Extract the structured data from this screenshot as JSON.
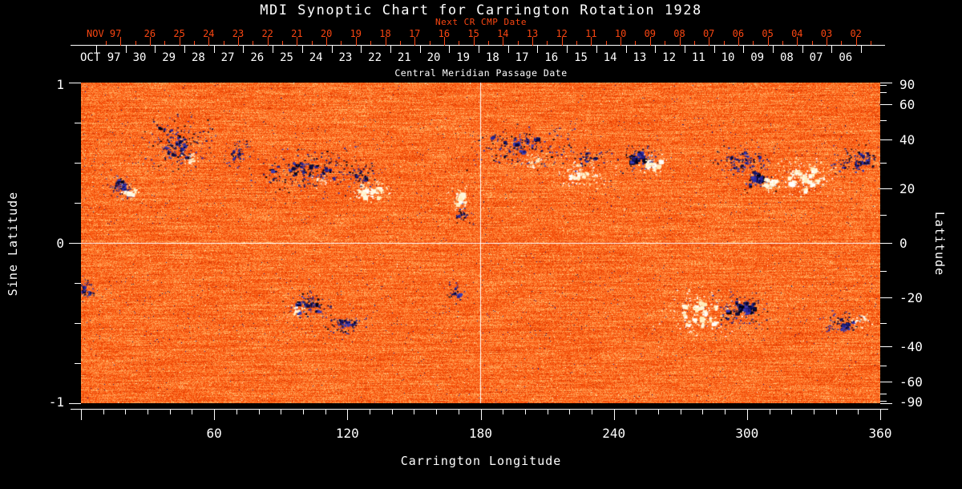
{
  "chart_data": {
    "type": "heatmap",
    "title": "MDI Synoptic Chart for Carrington Rotation 1928",
    "xlabel": "Carrington Longitude",
    "ylabel_left": "Sine Latitude",
    "ylabel_right": "Latitude",
    "xlim": [
      0,
      360
    ],
    "ylim_sine": [
      -1,
      1
    ],
    "x_major_tick_values": [
      60,
      120,
      180,
      240,
      300,
      360
    ],
    "x_tick_labels": [
      "60",
      "120",
      "180",
      "240",
      "300",
      "360"
    ],
    "x_minor_step_deg": 10,
    "left_tick_values": [
      1,
      0.75,
      0.5,
      0.25,
      0,
      -0.25,
      -0.5,
      -0.75,
      -1
    ],
    "left_labeled_values": [
      1,
      0,
      -1
    ],
    "left_tick_labels": [
      "1",
      "0",
      "-1"
    ],
    "right_tick_step_deg": 10,
    "right_labeled_values": [
      90,
      60,
      40,
      20,
      0,
      -20,
      -40,
      -60,
      -90
    ],
    "right_tick_labels": [
      "90",
      "60",
      "40",
      "20",
      "0",
      "-20",
      "-40",
      "-60",
      "-90"
    ],
    "grid_crosshair": {
      "longitude": 180,
      "sine_latitude": 0
    },
    "top_axis": {
      "label": "Central Meridian Passage Date",
      "month_label": "OCT 97",
      "dates": [
        "30",
        "29",
        "28",
        "27",
        "26",
        "25",
        "24",
        "23",
        "22",
        "21",
        "20",
        "19",
        "18",
        "17",
        "16",
        "15",
        "14",
        "13",
        "12",
        "11",
        "10",
        "09",
        "08",
        "07",
        "06"
      ],
      "next_cr": {
        "label": "Next CR CMP Date",
        "month_label": "NOV 97",
        "dates": [
          "26",
          "25",
          "24",
          "23",
          "22",
          "21",
          "20",
          "19",
          "18",
          "17",
          "16",
          "15",
          "14",
          "13",
          "12",
          "11",
          "10",
          "09",
          "08",
          "07",
          "06",
          "05",
          "04",
          "03",
          "02"
        ]
      }
    },
    "colors": {
      "background": "#000000",
      "text": "#ffffff",
      "accent_red": "#fa4612",
      "crosshair": "#ffffff",
      "quiet_sun_palette": [
        "#7d1600",
        "#c62d00",
        "#ef4505",
        "#fb5c12",
        "#ff7b2e",
        "#ffa255",
        "#ffd98f"
      ],
      "negative_polarity": [
        "#000010",
        "#0a0a3c",
        "#16166a",
        "#26269a",
        "#3b3bb4"
      ],
      "positive_polarity": [
        "#ffffff",
        "#fff7da",
        "#ffeebb"
      ]
    },
    "active_regions": [
      {
        "lon": 17.5,
        "slat": 0.36,
        "pol": "neg",
        "sl": 4,
        "ss": 0.045,
        "blobs": 10,
        "specks": 45,
        "size": 3
      },
      {
        "lon": 22,
        "slat": 0.32,
        "pol": "pos",
        "sl": 3,
        "ss": 0.03,
        "blobs": 7,
        "specks": 20,
        "size": 3
      },
      {
        "lon": 44,
        "slat": 0.63,
        "pol": "neg",
        "sl": 11,
        "ss": 0.1,
        "blobs": 26,
        "specks": 130,
        "size": 3
      },
      {
        "lon": 49,
        "slat": 0.53,
        "pol": "pos",
        "sl": 3,
        "ss": 0.03,
        "blobs": 5,
        "specks": 15,
        "size": 2
      },
      {
        "lon": 70,
        "slat": 0.56,
        "pol": "neg",
        "sl": 4,
        "ss": 0.05,
        "blobs": 8,
        "specks": 30,
        "size": 2
      },
      {
        "lon": 101,
        "slat": 0.45,
        "pol": "neg",
        "sl": 16,
        "ss": 0.09,
        "blobs": 30,
        "specks": 150,
        "size": 3
      },
      {
        "lon": 108,
        "slat": 0.39,
        "pol": "pos",
        "sl": 3,
        "ss": 0.03,
        "blobs": 4,
        "specks": 12,
        "size": 2
      },
      {
        "lon": 130,
        "slat": 0.33,
        "pol": "pos",
        "sl": 6,
        "ss": 0.05,
        "blobs": 18,
        "specks": 60,
        "size": 4
      },
      {
        "lon": 126,
        "slat": 0.42,
        "pol": "neg",
        "sl": 5,
        "ss": 0.05,
        "blobs": 8,
        "specks": 40,
        "size": 2
      },
      {
        "lon": 170,
        "slat": 0.27,
        "pol": "pos",
        "sl": 3,
        "ss": 0.05,
        "blobs": 10,
        "specks": 25,
        "size": 4
      },
      {
        "lon": 172,
        "slat": 0.18,
        "pol": "neg",
        "sl": 3,
        "ss": 0.04,
        "blobs": 6,
        "specks": 20,
        "size": 3
      },
      {
        "lon": 198,
        "slat": 0.6,
        "pol": "neg",
        "sl": 15,
        "ss": 0.08,
        "blobs": 26,
        "specks": 130,
        "size": 3
      },
      {
        "lon": 204,
        "slat": 0.5,
        "pol": "pos",
        "sl": 4,
        "ss": 0.04,
        "blobs": 6,
        "specks": 20,
        "size": 2
      },
      {
        "lon": 226,
        "slat": 0.44,
        "pol": "pos",
        "sl": 9,
        "ss": 0.07,
        "blobs": 18,
        "specks": 70,
        "size": 3
      },
      {
        "lon": 228,
        "slat": 0.53,
        "pol": "neg",
        "sl": 7,
        "ss": 0.05,
        "blobs": 8,
        "specks": 40,
        "size": 2
      },
      {
        "lon": 250.5,
        "slat": 0.54,
        "pol": "neg",
        "sl": 6,
        "ss": 0.055,
        "blobs": 16,
        "specks": 55,
        "size": 4
      },
      {
        "lon": 257,
        "slat": 0.485,
        "pol": "pos",
        "sl": 4,
        "ss": 0.04,
        "blobs": 14,
        "specks": 30,
        "size": 4
      },
      {
        "lon": 297,
        "slat": 0.515,
        "pol": "neg",
        "sl": 9,
        "ss": 0.06,
        "blobs": 18,
        "specks": 80,
        "size": 2
      },
      {
        "lon": 305,
        "slat": 0.4,
        "pol": "neg",
        "sl": 5,
        "ss": 0.05,
        "blobs": 16,
        "specks": 40,
        "size": 5
      },
      {
        "lon": 310,
        "slat": 0.375,
        "pol": "pos",
        "sl": 3,
        "ss": 0.035,
        "blobs": 10,
        "specks": 20,
        "size": 4
      },
      {
        "lon": 326,
        "slat": 0.41,
        "pol": "pos",
        "sl": 10,
        "ss": 0.07,
        "blobs": 28,
        "specks": 110,
        "size": 4
      },
      {
        "lon": 350,
        "slat": 0.51,
        "pol": "neg",
        "sl": 8,
        "ss": 0.06,
        "blobs": 16,
        "specks": 80,
        "size": 3
      },
      {
        "lon": 2,
        "slat": -0.3,
        "pol": "neg",
        "sl": 3,
        "ss": 0.05,
        "blobs": 8,
        "specks": 25,
        "size": 3
      },
      {
        "lon": 102,
        "slat": -0.385,
        "pol": "neg",
        "sl": 7,
        "ss": 0.05,
        "blobs": 16,
        "specks": 60,
        "size": 4
      },
      {
        "lon": 97,
        "slat": -0.42,
        "pol": "pos",
        "sl": 3,
        "ss": 0.03,
        "blobs": 4,
        "specks": 12,
        "size": 2
      },
      {
        "lon": 119,
        "slat": -0.51,
        "pol": "neg",
        "sl": 6,
        "ss": 0.04,
        "blobs": 10,
        "specks": 50,
        "size": 3
      },
      {
        "lon": 169,
        "slat": -0.31,
        "pol": "neg",
        "sl": 3,
        "ss": 0.05,
        "blobs": 6,
        "specks": 20,
        "size": 2
      },
      {
        "lon": 278,
        "slat": -0.435,
        "pol": "pos",
        "sl": 12,
        "ss": 0.09,
        "blobs": 34,
        "specks": 120,
        "size": 4
      },
      {
        "lon": 297,
        "slat": -0.41,
        "pol": "neg",
        "sl": 8,
        "ss": 0.07,
        "blobs": 22,
        "specks": 80,
        "size": 4
      },
      {
        "lon": 342,
        "slat": -0.5,
        "pol": "neg",
        "sl": 7,
        "ss": 0.05,
        "blobs": 12,
        "specks": 50,
        "size": 3
      },
      {
        "lon": 351,
        "slat": -0.475,
        "pol": "pos",
        "sl": 3,
        "ss": 0.03,
        "blobs": 6,
        "specks": 15,
        "size": 3
      }
    ]
  }
}
